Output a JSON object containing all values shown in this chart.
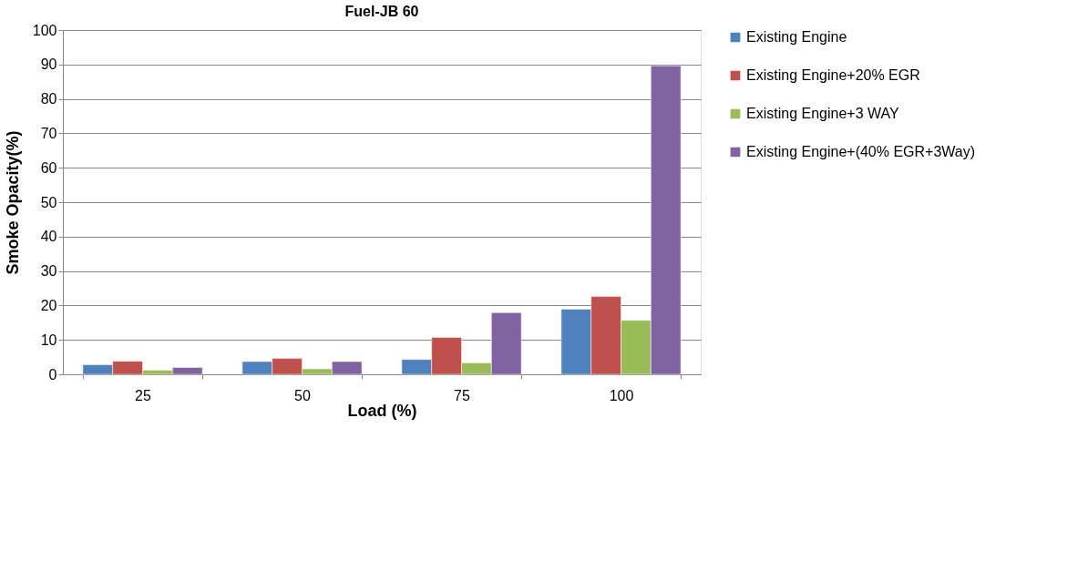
{
  "chart_data": {
    "type": "bar",
    "title": "Fuel-JB  60",
    "xlabel": "Load (%)",
    "ylabel": "Smoke Opacity(%)",
    "categories": [
      "25",
      "50",
      "75",
      "100"
    ],
    "series": [
      {
        "name": "Existing Engine",
        "color": "#4f81bd",
        "values": [
          2.8,
          3.7,
          4.3,
          18.9
        ]
      },
      {
        "name": "Existing Engine+20% EGR",
        "color": "#c0504d",
        "values": [
          3.8,
          4.6,
          10.7,
          22.6
        ]
      },
      {
        "name": "Existing Engine+3 WAY",
        "color": "#9bbb59",
        "values": [
          1.2,
          1.6,
          3.3,
          15.7
        ]
      },
      {
        "name": "Existing Engine+(40% EGR+3Way)",
        "color": "#8064a2",
        "values": [
          2.0,
          3.7,
          17.9,
          89.6
        ]
      }
    ],
    "ylim": [
      0,
      100
    ],
    "yticks": [
      0,
      10,
      20,
      30,
      40,
      50,
      60,
      70,
      80,
      90,
      100
    ],
    "grid": "y",
    "legend": "right"
  }
}
